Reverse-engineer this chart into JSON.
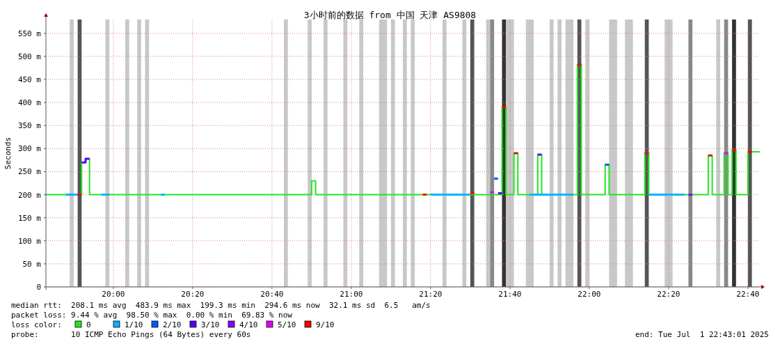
{
  "chart_data": {
    "type": "step",
    "title": "3小时前的数据 from 中国 天津 AS9808",
    "ylabel": "Seconds",
    "legend_title": "loss color:",
    "legend": "bottom",
    "grid": true,
    "xlim": [
      "2025-07-01T19:43",
      "2025-07-01T22:43"
    ],
    "xticks": [
      {
        "value": "2025-07-01T20:00",
        "label": "20:00"
      },
      {
        "value": "2025-07-01T20:20",
        "label": "20:20"
      },
      {
        "value": "2025-07-01T20:40",
        "label": "20:40"
      },
      {
        "value": "2025-07-01T21:00",
        "label": "21:00"
      },
      {
        "value": "2025-07-01T21:20",
        "label": "21:20"
      },
      {
        "value": "2025-07-01T21:40",
        "label": "21:40"
      },
      {
        "value": "2025-07-01T22:00",
        "label": "22:00"
      },
      {
        "value": "2025-07-01T22:20",
        "label": "22:20"
      },
      {
        "value": "2025-07-01T22:40",
        "label": "22:40"
      }
    ],
    "ylim": [
      0,
      580
    ],
    "yticks": [
      0,
      {
        "value": 50,
        "label": "50 m"
      },
      {
        "value": 100,
        "label": "100 m"
      },
      {
        "value": 150,
        "label": "150 m"
      },
      {
        "value": 200,
        "label": "200 m"
      },
      {
        "value": 250,
        "label": "250 m"
      },
      {
        "value": 300,
        "label": "300 m"
      },
      {
        "value": 350,
        "label": "350 m"
      },
      {
        "value": 400,
        "label": "400 m"
      },
      {
        "value": 450,
        "label": "450 m"
      },
      {
        "value": 500,
        "label": "500 m"
      },
      {
        "value": 550,
        "label": "550 m"
      }
    ],
    "series": [
      {
        "name": "0",
        "color": "#22e622",
        "x": [
          "2025-07-01T19:43",
          "2025-07-01T19:52",
          "2025-07-01T19:53",
          "2025-07-01T19:54",
          "2025-07-01T20:50",
          "2025-07-01T20:51",
          "2025-07-01T21:38",
          "2025-07-01T21:39",
          "2025-07-01T21:41",
          "2025-07-01T21:42",
          "2025-07-01T21:47",
          "2025-07-01T21:48",
          "2025-07-01T21:57",
          "2025-07-01T21:58",
          "2025-07-01T22:04",
          "2025-07-01T22:05",
          "2025-07-01T22:14",
          "2025-07-01T22:15",
          "2025-07-01T22:30",
          "2025-07-01T22:31",
          "2025-07-01T22:34",
          "2025-07-01T22:35",
          "2025-07-01T22:36",
          "2025-07-01T22:37",
          "2025-07-01T22:40",
          "2025-07-01T22:43"
        ],
        "values": [
          200,
          270,
          278,
          200,
          230,
          200,
          390,
          200,
          290,
          200,
          287,
          200,
          482,
          200,
          265,
          200,
          290,
          200,
          285,
          200,
          290,
          200,
          297,
          200,
          293,
          293
        ]
      },
      {
        "name": "1/10",
        "color": "#00b4ff",
        "x": [
          "2025-07-01T19:48",
          "2025-07-01T19:51",
          null,
          "2025-07-01T19:57",
          "2025-07-01T19:59",
          null,
          "2025-07-01T20:12",
          "2025-07-01T20:13",
          null,
          "2025-07-01T21:20",
          "2025-07-01T21:30",
          null,
          "2025-07-01T21:45",
          "2025-07-01T21:56",
          null,
          "2025-07-01T22:15",
          "2025-07-01T22:24",
          null
        ],
        "values": [
          200,
          200,
          null,
          200,
          200,
          null,
          200,
          200,
          null,
          200,
          200,
          null,
          200,
          200,
          null,
          200,
          200,
          null
        ]
      },
      {
        "name": "2/10",
        "color": "#0059ff",
        "x": [
          "2025-07-01T21:36",
          "2025-07-01T21:37",
          null,
          "2025-07-01T22:04",
          "2025-07-01T22:05",
          null
        ],
        "values": [
          235,
          235,
          null,
          265,
          265,
          null
        ]
      },
      {
        "name": "3/10",
        "color": "#5500ff",
        "x": [
          "2025-07-01T19:52",
          "2025-07-01T19:53",
          "2025-07-01T19:53",
          "2025-07-01T19:54",
          null,
          "2025-07-01T21:37",
          "2025-07-01T21:38",
          null,
          "2025-07-01T21:47",
          "2025-07-01T21:48",
          null
        ],
        "values": [
          270,
          270,
          278,
          278,
          null,
          203,
          203,
          null,
          287,
          287,
          null
        ]
      },
      {
        "name": "4/10",
        "color": "#8a00ff",
        "x": [
          "2025-07-01T22:25",
          "2025-07-01T22:26",
          null
        ],
        "values": [
          200,
          200,
          null
        ]
      },
      {
        "name": "5/10",
        "color": "#e000ff",
        "x": [
          "2025-07-01T21:35",
          "2025-07-01T21:36",
          null,
          "2025-07-01T22:34",
          "2025-07-01T22:35",
          null
        ],
        "values": [
          205,
          205,
          null,
          290,
          290,
          null
        ]
      },
      {
        "name": "9/10",
        "color": "#ff0000",
        "x": [
          "2025-07-01T19:51",
          "2025-07-01T19:52",
          null,
          "2025-07-01T21:18",
          "2025-07-01T21:19",
          null,
          "2025-07-01T21:30",
          "2025-07-01T21:31",
          null,
          "2025-07-01T21:38",
          "2025-07-01T21:39",
          null,
          "2025-07-01T21:41",
          "2025-07-01T21:42",
          null,
          "2025-07-01T21:57",
          "2025-07-01T21:58",
          null,
          "2025-07-01T22:14",
          "2025-07-01T22:15",
          null,
          "2025-07-01T22:30",
          "2025-07-01T22:31",
          null,
          "2025-07-01T22:36",
          "2025-07-01T22:37",
          null,
          "2025-07-01T22:40",
          "2025-07-01T22:41"
        ],
        "values": [
          200,
          200,
          null,
          200,
          200,
          null,
          203,
          203,
          null,
          390,
          390,
          null,
          290,
          290,
          null,
          482,
          482,
          null,
          290,
          290,
          null,
          285,
          285,
          null,
          297,
          297,
          null,
          293,
          293
        ]
      }
    ],
    "bands": [
      {
        "axis": "x",
        "from": "2025-07-01T19:49",
        "to": "2025-07-01T19:50",
        "color": "#c8c8c8"
      },
      {
        "axis": "x",
        "from": "2025-07-01T19:51",
        "to": "2025-07-01T19:52",
        "color": "#555555"
      },
      {
        "axis": "x",
        "from": "2025-07-01T19:58",
        "to": "2025-07-01T19:59",
        "color": "#c8c8c8"
      },
      {
        "axis": "x",
        "from": "2025-07-01T20:03",
        "to": "2025-07-01T20:04",
        "color": "#c8c8c8"
      },
      {
        "axis": "x",
        "from": "2025-07-01T20:06",
        "to": "2025-07-01T20:07",
        "color": "#c8c8c8"
      },
      {
        "axis": "x",
        "from": "2025-07-01T20:08",
        "to": "2025-07-01T20:09",
        "color": "#c8c8c8"
      },
      {
        "axis": "x",
        "from": "2025-07-01T20:43",
        "to": "2025-07-01T20:44",
        "color": "#c8c8c8"
      },
      {
        "axis": "x",
        "from": "2025-07-01T20:49",
        "to": "2025-07-01T20:50",
        "color": "#c8c8c8"
      },
      {
        "axis": "x",
        "from": "2025-07-01T20:53",
        "to": "2025-07-01T20:54",
        "color": "#c8c8c8"
      },
      {
        "axis": "x",
        "from": "2025-07-01T20:58",
        "to": "2025-07-01T20:59",
        "color": "#c8c8c8"
      },
      {
        "axis": "x",
        "from": "2025-07-01T21:02",
        "to": "2025-07-01T21:03",
        "color": "#c8c8c8"
      },
      {
        "axis": "x",
        "from": "2025-07-01T21:07",
        "to": "2025-07-01T21:09",
        "color": "#c8c8c8"
      },
      {
        "axis": "x",
        "from": "2025-07-01T21:10",
        "to": "2025-07-01T21:11",
        "color": "#c8c8c8"
      },
      {
        "axis": "x",
        "from": "2025-07-01T21:13",
        "to": "2025-07-01T21:14",
        "color": "#c8c8c8"
      },
      {
        "axis": "x",
        "from": "2025-07-01T21:15",
        "to": "2025-07-01T21:16",
        "color": "#c8c8c8"
      },
      {
        "axis": "x",
        "from": "2025-07-01T21:23",
        "to": "2025-07-01T21:24",
        "color": "#c8c8c8"
      },
      {
        "axis": "x",
        "from": "2025-07-01T21:28",
        "to": "2025-07-01T21:29",
        "color": "#c8c8c8"
      },
      {
        "axis": "x",
        "from": "2025-07-01T21:30",
        "to": "2025-07-01T21:31",
        "color": "#555555"
      },
      {
        "axis": "x",
        "from": "2025-07-01T21:34",
        "to": "2025-07-01T21:35",
        "color": "#c8c8c8"
      },
      {
        "axis": "x",
        "from": "2025-07-01T21:35",
        "to": "2025-07-01T21:36",
        "color": "#888888"
      },
      {
        "axis": "x",
        "from": "2025-07-01T21:38",
        "to": "2025-07-01T21:39",
        "color": "#333333"
      },
      {
        "axis": "x",
        "from": "2025-07-01T21:39",
        "to": "2025-07-01T21:41",
        "color": "#c8c8c8"
      },
      {
        "axis": "x",
        "from": "2025-07-01T21:44",
        "to": "2025-07-01T21:46",
        "color": "#c8c8c8"
      },
      {
        "axis": "x",
        "from": "2025-07-01T21:50",
        "to": "2025-07-01T21:51",
        "color": "#c8c8c8"
      },
      {
        "axis": "x",
        "from": "2025-07-01T21:52",
        "to": "2025-07-01T21:53",
        "color": "#c8c8c8"
      },
      {
        "axis": "x",
        "from": "2025-07-01T21:54",
        "to": "2025-07-01T21:56",
        "color": "#c8c8c8"
      },
      {
        "axis": "x",
        "from": "2025-07-01T21:57",
        "to": "2025-07-01T21:58",
        "color": "#555555"
      },
      {
        "axis": "x",
        "from": "2025-07-01T21:59",
        "to": "2025-07-01T22:00",
        "color": "#c8c8c8"
      },
      {
        "axis": "x",
        "from": "2025-07-01T22:05",
        "to": "2025-07-01T22:07",
        "color": "#c8c8c8"
      },
      {
        "axis": "x",
        "from": "2025-07-01T22:09",
        "to": "2025-07-01T22:11",
        "color": "#c8c8c8"
      },
      {
        "axis": "x",
        "from": "2025-07-01T22:14",
        "to": "2025-07-01T22:15",
        "color": "#555555"
      },
      {
        "axis": "x",
        "from": "2025-07-01T22:19",
        "to": "2025-07-01T22:21",
        "color": "#c8c8c8"
      },
      {
        "axis": "x",
        "from": "2025-07-01T22:25",
        "to": "2025-07-01T22:26",
        "color": "#888888"
      },
      {
        "axis": "x",
        "from": "2025-07-01T22:32",
        "to": "2025-07-01T22:33",
        "color": "#c8c8c8"
      },
      {
        "axis": "x",
        "from": "2025-07-01T22:34",
        "to": "2025-07-01T22:35",
        "color": "#888888"
      },
      {
        "axis": "x",
        "from": "2025-07-01T22:36",
        "to": "2025-07-01T22:37",
        "color": "#333333"
      },
      {
        "axis": "x",
        "from": "2025-07-01T22:40",
        "to": "2025-07-01T22:41",
        "color": "#555555"
      }
    ],
    "annotations": [
      "median rtt:  208.1 ms avg  483.9 ms max  199.3 ms min  294.6 ms now  32.1 ms sd  6.5   am/s",
      "packet loss: 9.44 % avg  98.50 % max  0.00 % min  69.83 % now",
      "probe:       10 ICMP Echo Pings (64 Bytes) every 60s",
      "end: Tue Jul  1 22:43:01 2025"
    ]
  }
}
